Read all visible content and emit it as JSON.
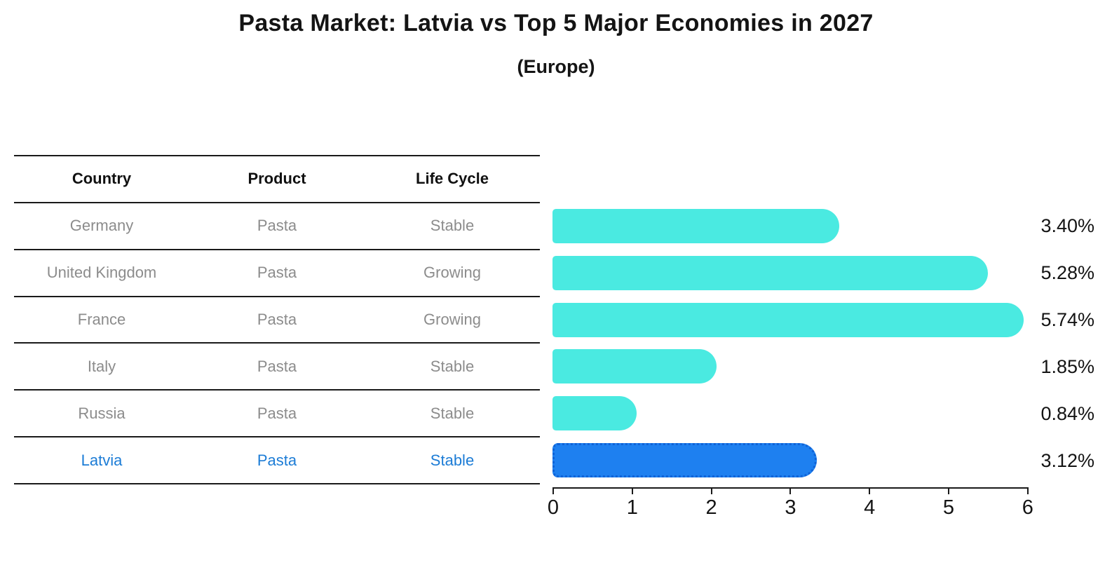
{
  "title": "Pasta Market: Latvia vs Top 5 Major Economies in 2027",
  "subtitle": "(Europe)",
  "colors": {
    "bar": "#4AEAE1",
    "highlight_bar": "#1E80F0",
    "highlight_bar_edge": "#0F62D6",
    "highlight_text": "#1C7CD6",
    "row_text": "#8C8C8C",
    "header_text": "#111111",
    "line": "#1A1A1A"
  },
  "table": {
    "headers": [
      "Country",
      "Product",
      "Life Cycle"
    ],
    "rows": [
      {
        "country": "Germany",
        "product": "Pasta",
        "life_cycle": "Stable",
        "highlight": false
      },
      {
        "country": "United Kingdom",
        "product": "Pasta",
        "life_cycle": "Growing",
        "highlight": false
      },
      {
        "country": "France",
        "product": "Pasta",
        "life_cycle": "Growing",
        "highlight": false
      },
      {
        "country": "Italy",
        "product": "Pasta",
        "life_cycle": "Stable",
        "highlight": false
      },
      {
        "country": "Russia",
        "product": "Pasta",
        "life_cycle": "Stable",
        "highlight": false
      },
      {
        "country": "Latvia",
        "product": "Pasta",
        "life_cycle": "Stable",
        "highlight": true
      }
    ]
  },
  "chart_data": {
    "type": "bar",
    "orientation": "horizontal",
    "title": "Pasta Market: Latvia vs Top 5 Major Economies in 2027",
    "subtitle": "(Europe)",
    "categories": [
      "Germany",
      "United Kingdom",
      "France",
      "Italy",
      "Russia",
      "Latvia"
    ],
    "values": [
      3.4,
      5.28,
      5.74,
      1.85,
      0.84,
      3.12
    ],
    "value_labels": [
      "3.40%",
      "5.28%",
      "5.74%",
      "1.85%",
      "0.84%",
      "3.12%"
    ],
    "highlight_index": 5,
    "xlim": [
      0,
      6
    ],
    "x_ticks": [
      0,
      1,
      2,
      3,
      4,
      5,
      6
    ],
    "x_tick_labels": [
      "0",
      "1",
      "2",
      "3",
      "4",
      "5",
      "6"
    ],
    "grid": false,
    "legend": false
  }
}
